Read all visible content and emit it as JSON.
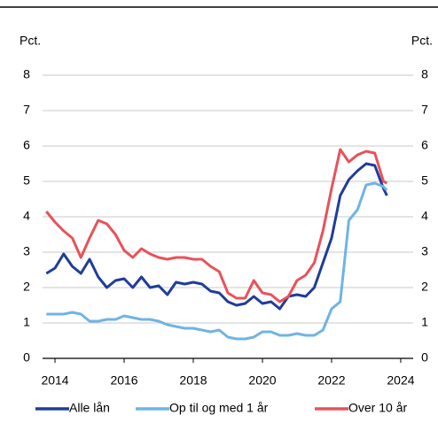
{
  "chart_data": {
    "type": "line",
    "y_label": "Pct.",
    "y2_label": "Pct.",
    "x": [
      2013.75,
      2014.0,
      2014.25,
      2014.5,
      2014.75,
      2015.0,
      2015.25,
      2015.5,
      2015.75,
      2016.0,
      2016.25,
      2016.5,
      2016.75,
      2017.0,
      2017.25,
      2017.5,
      2017.75,
      2018.0,
      2018.25,
      2018.5,
      2018.75,
      2019.0,
      2019.25,
      2019.5,
      2019.75,
      2020.0,
      2020.25,
      2020.5,
      2020.75,
      2021.0,
      2021.25,
      2021.5,
      2021.75,
      2022.0,
      2022.25,
      2022.5,
      2022.75,
      2023.0,
      2023.25,
      2023.5,
      2023.6
    ],
    "series": [
      {
        "name": "Alle lån",
        "color": "#1f3d99",
        "values": [
          2.4,
          2.55,
          2.95,
          2.6,
          2.4,
          2.8,
          2.3,
          2.0,
          2.2,
          2.25,
          2.0,
          2.3,
          2.0,
          2.05,
          1.8,
          2.15,
          2.1,
          2.15,
          2.1,
          1.9,
          1.85,
          1.6,
          1.5,
          1.55,
          1.75,
          1.55,
          1.6,
          1.4,
          1.75,
          1.8,
          1.75,
          2.0,
          2.7,
          3.4,
          4.6,
          5.05,
          5.3,
          5.5,
          5.45,
          4.8,
          4.6
        ]
      },
      {
        "name": "Op til og med 1 år",
        "color": "#6fb4e3",
        "values": [
          1.25,
          1.25,
          1.25,
          1.3,
          1.25,
          1.05,
          1.05,
          1.1,
          1.1,
          1.2,
          1.15,
          1.1,
          1.1,
          1.05,
          0.95,
          0.9,
          0.85,
          0.85,
          0.8,
          0.75,
          0.8,
          0.6,
          0.55,
          0.55,
          0.6,
          0.75,
          0.75,
          0.65,
          0.65,
          0.7,
          0.65,
          0.65,
          0.8,
          1.4,
          1.6,
          3.9,
          4.2,
          4.9,
          4.95,
          4.85,
          4.75
        ]
      },
      {
        "name": "Over 10 år",
        "color": "#e8525a",
        "values": [
          4.15,
          3.85,
          3.6,
          3.4,
          2.85,
          3.4,
          3.9,
          3.8,
          3.5,
          3.05,
          2.85,
          3.1,
          2.95,
          2.85,
          2.8,
          2.85,
          2.85,
          2.8,
          2.8,
          2.6,
          2.45,
          1.85,
          1.7,
          1.7,
          2.2,
          1.85,
          1.8,
          1.6,
          1.75,
          2.2,
          2.35,
          2.7,
          3.6,
          4.8,
          5.9,
          5.55,
          5.75,
          5.85,
          5.8,
          5.0,
          4.95
        ]
      }
    ],
    "xlim": [
      2013.64,
      2024.36
    ],
    "xticks": [
      2014,
      2016,
      2018,
      2020,
      2022,
      2024
    ],
    "ylim": [
      0,
      8
    ],
    "yticks": [
      0,
      1,
      2,
      3,
      4,
      5,
      6,
      7,
      8
    ],
    "y2lim": [
      0,
      8
    ],
    "y2ticks": [
      0,
      1,
      2,
      3,
      4,
      5,
      6,
      7,
      8
    ],
    "grid": true
  }
}
